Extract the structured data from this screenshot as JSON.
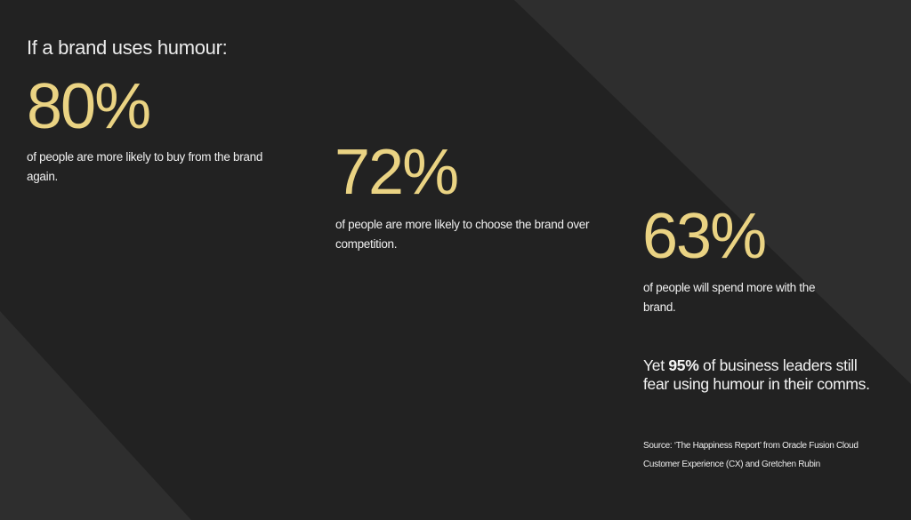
{
  "colors": {
    "background": "#222222",
    "accent_shape": "#2e2e2e",
    "stat": "#ead383",
    "text": "#f0f0f0"
  },
  "heading": "If a brand uses humour:",
  "stats": [
    {
      "value": "80%",
      "text": "of people are more likely to buy from the brand again."
    },
    {
      "value": "72%",
      "text": "of people are more likely to choose the brand over competition."
    },
    {
      "value": "63%",
      "text": "of people will spend more with the brand."
    }
  ],
  "closing": {
    "prefix": "Yet ",
    "highlight": "95%",
    "suffix": " of business leaders still fear using humour in their comms."
  },
  "source": "Source: ‘The Happiness Report’ from Oracle Fusion Cloud Customer Experience (CX) and Gretchen Rubin"
}
